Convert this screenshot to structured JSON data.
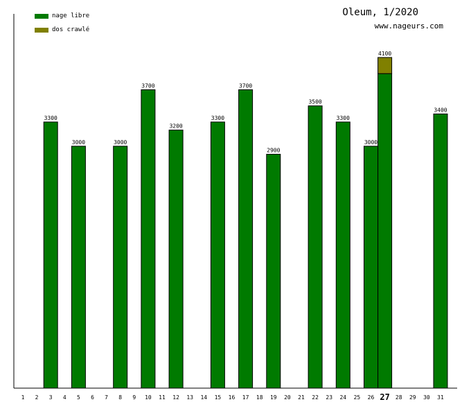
{
  "header": {
    "title": "Oleum, 1/2020",
    "site": "www.nageurs.com"
  },
  "legend": [
    {
      "label": "nage libre",
      "color": "#007a00"
    },
    {
      "label": "dos crawlé",
      "color": "#808000"
    }
  ],
  "chart_data": {
    "type": "bar",
    "stacked": true,
    "categories": [
      "1",
      "2",
      "3",
      "4",
      "5",
      "6",
      "7",
      "8",
      "9",
      "10",
      "11",
      "12",
      "13",
      "14",
      "15",
      "16",
      "17",
      "18",
      "19",
      "20",
      "21",
      "22",
      "23",
      "24",
      "25",
      "26",
      "27",
      "28",
      "29",
      "30",
      "31"
    ],
    "highlight_category": "27",
    "series": [
      {
        "name": "nage libre",
        "color": "#007a00",
        "values": [
          0,
          0,
          3300,
          0,
          3000,
          0,
          0,
          3000,
          0,
          3700,
          0,
          3200,
          0,
          0,
          3300,
          0,
          3700,
          0,
          2900,
          0,
          0,
          3500,
          0,
          3300,
          0,
          3000,
          3900,
          0,
          0,
          0,
          3400
        ]
      },
      {
        "name": "dos crawlé",
        "color": "#808000",
        "values": [
          0,
          0,
          0,
          0,
          0,
          0,
          0,
          0,
          0,
          0,
          0,
          0,
          0,
          0,
          0,
          0,
          0,
          0,
          0,
          0,
          0,
          0,
          0,
          0,
          0,
          0,
          200,
          0,
          0,
          0,
          0
        ]
      }
    ],
    "totals": [
      "",
      "",
      "3300",
      "",
      "3000",
      "",
      "",
      "3000",
      "",
      "3700",
      "",
      "3200",
      "",
      "",
      "3300",
      "",
      "3700",
      "",
      "2900",
      "",
      "",
      "3500",
      "",
      "3300",
      "",
      "3000",
      "4100",
      "",
      "",
      "",
      "3400"
    ],
    "ylim": [
      0,
      4400
    ],
    "grid": false
  }
}
